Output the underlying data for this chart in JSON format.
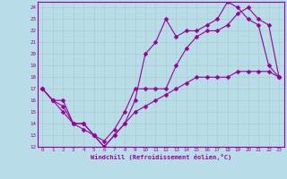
{
  "xlabel": "Windchill (Refroidissement éolien,°C)",
  "xlim": [
    -0.5,
    23.5
  ],
  "ylim": [
    12,
    24.5
  ],
  "xticks": [
    0,
    1,
    2,
    3,
    4,
    5,
    6,
    7,
    8,
    9,
    10,
    11,
    12,
    13,
    14,
    15,
    16,
    17,
    18,
    19,
    20,
    21,
    22,
    23
  ],
  "yticks": [
    12,
    13,
    14,
    15,
    16,
    17,
    18,
    19,
    20,
    21,
    22,
    23,
    24
  ],
  "bg_color": "#b8dde8",
  "line_color": "#990099",
  "grid_color": "#aacccc",
  "line1_x": [
    0,
    1,
    2,
    3,
    4,
    5,
    6,
    7,
    8,
    9,
    10,
    11,
    12,
    13,
    14,
    15,
    16,
    17,
    18,
    19,
    20,
    21,
    22,
    23
  ],
  "line1_y": [
    17,
    16,
    15.5,
    14,
    14,
    13,
    12,
    13,
    14,
    16,
    20,
    21,
    23,
    21.5,
    22,
    22,
    22.5,
    23,
    24.5,
    24,
    23,
    22.5,
    19,
    18
  ],
  "line2_x": [
    0,
    1,
    2,
    3,
    4,
    5,
    6,
    7,
    8,
    9,
    10,
    11,
    12,
    13,
    14,
    15,
    16,
    17,
    18,
    19,
    20,
    21,
    22,
    23
  ],
  "line2_y": [
    17,
    16,
    16,
    14,
    13.5,
    13,
    12.5,
    13.5,
    15,
    17,
    17,
    17,
    17,
    19,
    20.5,
    21.5,
    22,
    22,
    22.5,
    23.5,
    24,
    23,
    22.5,
    18
  ],
  "line3_x": [
    0,
    1,
    2,
    3,
    4,
    5,
    6,
    7,
    8,
    9,
    10,
    11,
    12,
    13,
    14,
    15,
    16,
    17,
    18,
    19,
    20,
    21,
    22,
    23
  ],
  "line3_y": [
    17,
    16,
    15,
    14,
    14,
    13,
    12,
    13,
    14,
    15,
    15.5,
    16,
    16.5,
    17,
    17.5,
    18,
    18,
    18,
    18,
    18.5,
    18.5,
    18.5,
    18.5,
    18
  ]
}
